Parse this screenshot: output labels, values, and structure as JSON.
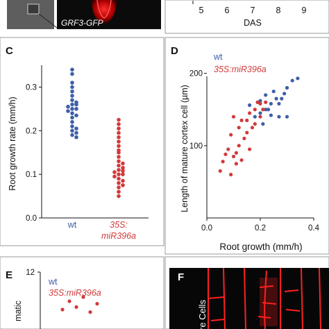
{
  "colors": {
    "wt": "#3e5fa8",
    "mutant": "#d23a3a",
    "micro_dark": "#1c1c1c",
    "micro_red": "#ff2020"
  },
  "panel_a": {
    "caption": "GRF3-GFP",
    "icon": "microscopy-image"
  },
  "panel_b": {
    "x_ticks": [
      "5",
      "6",
      "7",
      "8",
      "9"
    ],
    "x_title": "DAS"
  },
  "chart_data": [
    {
      "panel": "C",
      "type": "scatter",
      "ylabel": "Root growth rate (mm/h)",
      "ylim": [
        0,
        0.35
      ],
      "y_ticks": [
        "0.0",
        "0.1",
        "0.2",
        "0.3"
      ],
      "categories": [
        "wt",
        "35S:\nmiR396a"
      ],
      "series": [
        {
          "name": "wt",
          "values": [
            0.34,
            0.33,
            0.31,
            0.3,
            0.29,
            0.28,
            0.27,
            0.265,
            0.26,
            0.26,
            0.255,
            0.25,
            0.25,
            0.245,
            0.24,
            0.235,
            0.23,
            0.22,
            0.21,
            0.205,
            0.2,
            0.195,
            0.19,
            0.185
          ]
        },
        {
          "name": "35S:miR396a",
          "values": [
            0.225,
            0.215,
            0.205,
            0.195,
            0.185,
            0.175,
            0.165,
            0.155,
            0.15,
            0.14,
            0.13,
            0.125,
            0.12,
            0.115,
            0.11,
            0.108,
            0.105,
            0.1,
            0.1,
            0.095,
            0.09,
            0.085,
            0.08,
            0.075,
            0.07,
            0.06,
            0.05
          ]
        }
      ]
    },
    {
      "panel": "D",
      "type": "scatter",
      "xlabel": "Root growth (mm/h)",
      "ylabel": "Length of mature cortex cell (µm)",
      "xlim": [
        0,
        0.4
      ],
      "ylim": [
        0,
        240
      ],
      "x_ticks": [
        "0.0",
        "0.2",
        "0.4"
      ],
      "y_ticks": [
        "100",
        "200"
      ],
      "legend": [
        "wt",
        "35S:miR396a"
      ],
      "series": [
        {
          "name": "wt",
          "points": [
            [
              0.34,
              193
            ],
            [
              0.32,
              190
            ],
            [
              0.3,
              180
            ],
            [
              0.29,
              172
            ],
            [
              0.28,
              165
            ],
            [
              0.27,
              158
            ],
            [
              0.26,
              165
            ],
            [
              0.25,
              175
            ],
            [
              0.24,
              158
            ],
            [
              0.24,
              142
            ],
            [
              0.23,
              150
            ],
            [
              0.22,
              170
            ],
            [
              0.22,
              150
            ],
            [
              0.2,
              162
            ],
            [
              0.2,
              145
            ],
            [
              0.19,
              160
            ],
            [
              0.18,
              140
            ],
            [
              0.3,
              140
            ],
            [
              0.27,
              140
            ],
            [
              0.16,
              156
            ],
            [
              0.21,
              130
            ]
          ]
        },
        {
          "name": "35S:miR396a",
          "points": [
            [
              0.05,
              65
            ],
            [
              0.06,
              78
            ],
            [
              0.07,
              88
            ],
            [
              0.08,
              95
            ],
            [
              0.09,
              60
            ],
            [
              0.09,
              115
            ],
            [
              0.1,
              85
            ],
            [
              0.1,
              140
            ],
            [
              0.11,
              90
            ],
            [
              0.12,
              100
            ],
            [
              0.12,
              125
            ],
            [
              0.13,
              80
            ],
            [
              0.14,
              110
            ],
            [
              0.15,
              118
            ],
            [
              0.15,
              135
            ],
            [
              0.16,
              95
            ],
            [
              0.16,
              145
            ],
            [
              0.17,
              125
            ],
            [
              0.18,
              130
            ],
            [
              0.18,
              150
            ],
            [
              0.19,
              160
            ],
            [
              0.2,
              140
            ],
            [
              0.2,
              158
            ],
            [
              0.21,
              150
            ],
            [
              0.22,
              160
            ],
            [
              0.11,
              75
            ],
            [
              0.13,
              135
            ]
          ]
        }
      ]
    },
    {
      "panel": "E",
      "type": "scatter",
      "ylabel": "matic",
      "y_ticks": [
        "12"
      ],
      "ylim": [
        0,
        12
      ],
      "legend": [
        "wt",
        "35S:miR396a"
      ],
      "series": [
        {
          "name": "35S:miR396a",
          "points": [
            [
              1,
              8.5
            ],
            [
              1.1,
              9
            ],
            [
              1.05,
              7.8
            ],
            [
              0.95,
              7.5
            ],
            [
              1.2,
              8.2
            ],
            [
              1.15,
              7.2
            ]
          ]
        }
      ]
    }
  ],
  "panel_f": {
    "text": "re Cells",
    "icon": "microscopy-image"
  }
}
